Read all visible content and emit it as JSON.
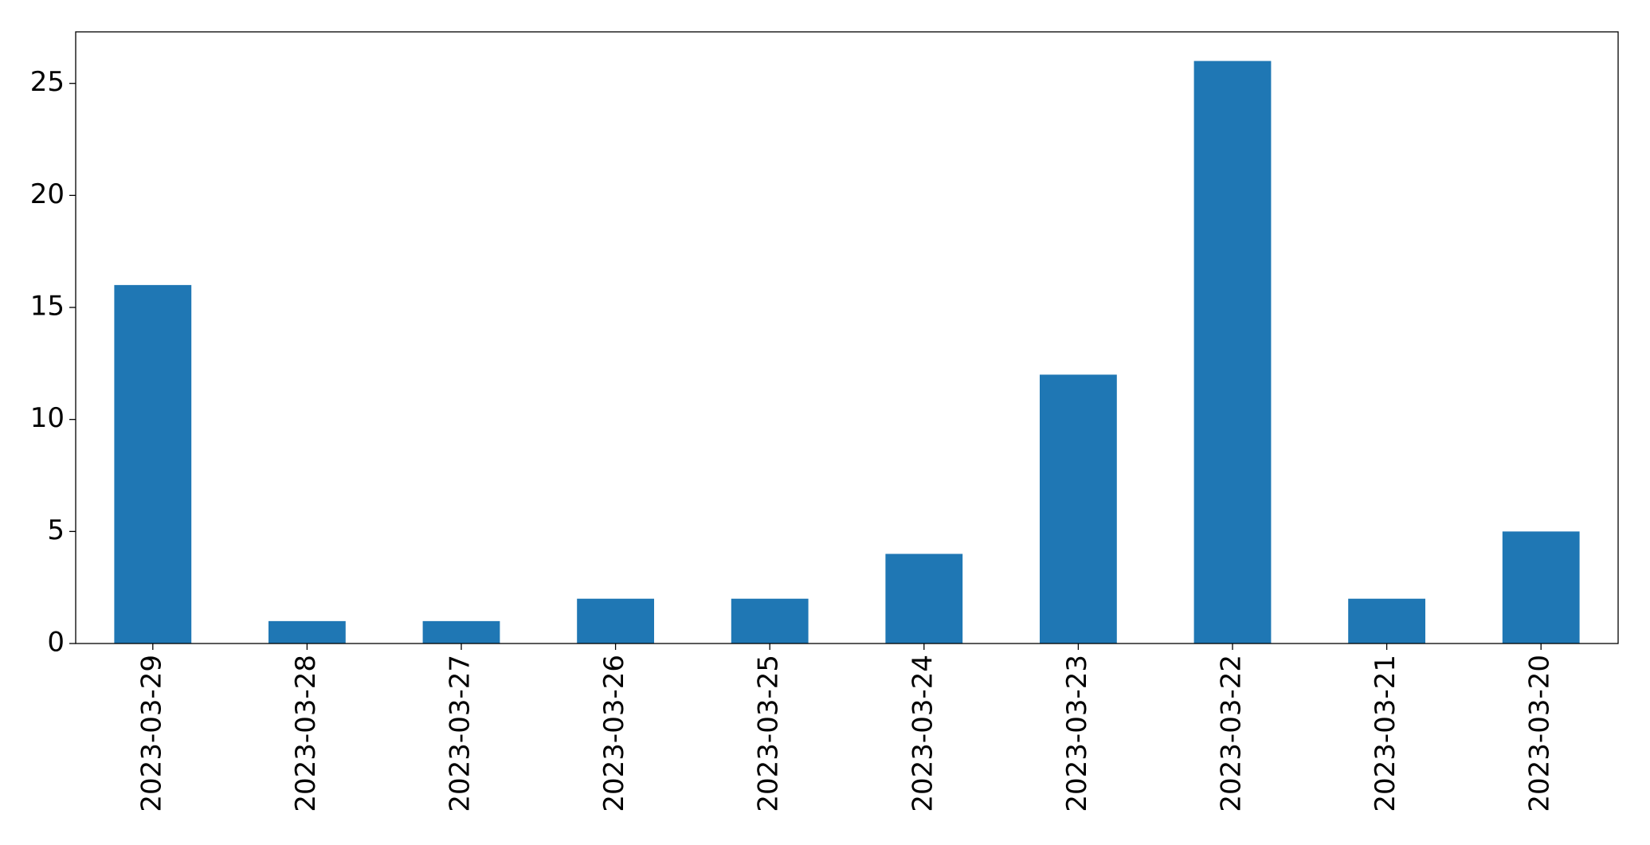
{
  "chart_data": {
    "type": "bar",
    "categories": [
      "2023-03-29",
      "2023-03-28",
      "2023-03-27",
      "2023-03-26",
      "2023-03-25",
      "2023-03-24",
      "2023-03-23",
      "2023-03-22",
      "2023-03-21",
      "2023-03-20"
    ],
    "values": [
      16,
      1,
      1,
      2,
      2,
      4,
      12,
      26,
      2,
      5
    ],
    "color": "#1f77b4",
    "ylim": [
      0,
      27.3
    ],
    "yticks": [
      0,
      5,
      10,
      15,
      20,
      25
    ],
    "grid": false
  }
}
